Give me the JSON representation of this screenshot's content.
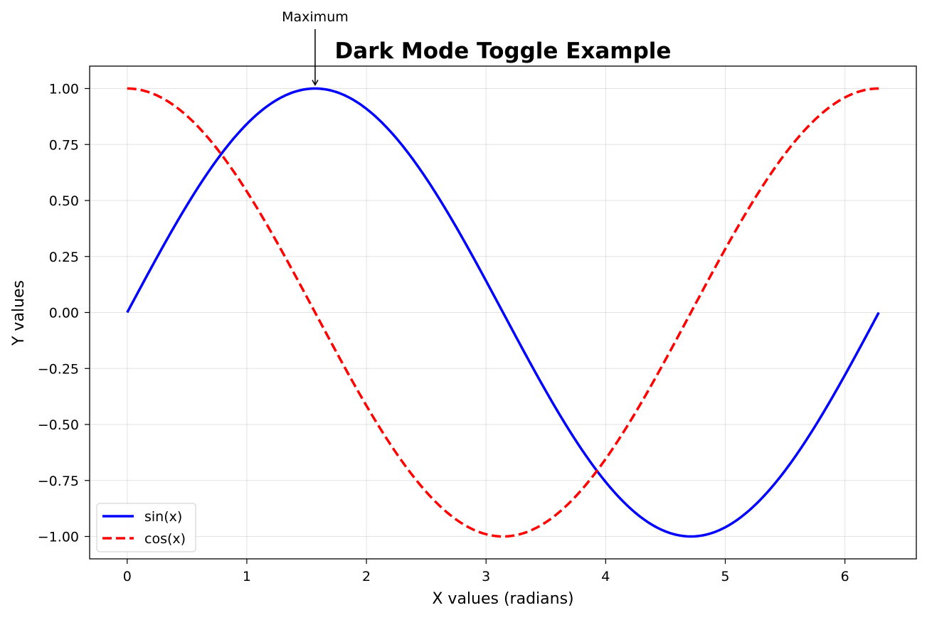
{
  "chart_data": {
    "type": "line",
    "title": "Dark Mode Toggle Example",
    "xlabel": "X values (radians)",
    "ylabel": "Y values",
    "xlim": [
      -0.314,
      6.597
    ],
    "ylim": [
      -1.1,
      1.1
    ],
    "x_ticks": [
      0,
      1,
      2,
      3,
      4,
      5,
      6
    ],
    "x_tick_labels": [
      "0",
      "1",
      "2",
      "3",
      "4",
      "5",
      "6"
    ],
    "y_ticks": [
      1.0,
      0.75,
      0.5,
      0.25,
      0.0,
      -0.25,
      -0.5,
      -0.75,
      -1.0
    ],
    "y_tick_labels": [
      "1.00",
      "0.75",
      "0.50",
      "0.25",
      "0.00",
      "−0.25",
      "−0.50",
      "−0.75",
      "−1.00"
    ],
    "grid": true,
    "legend_position": "lower-left",
    "x_range": [
      0,
      6.283
    ],
    "series": [
      {
        "name": "sin(x)",
        "function": "sin",
        "color": "#0000ff",
        "style": "solid"
      },
      {
        "name": "cos(x)",
        "function": "cos",
        "color": "#ff0000",
        "style": "dashed"
      }
    ],
    "annotation": {
      "text": "Maximum",
      "x": 1.571,
      "y": 1.0
    }
  }
}
